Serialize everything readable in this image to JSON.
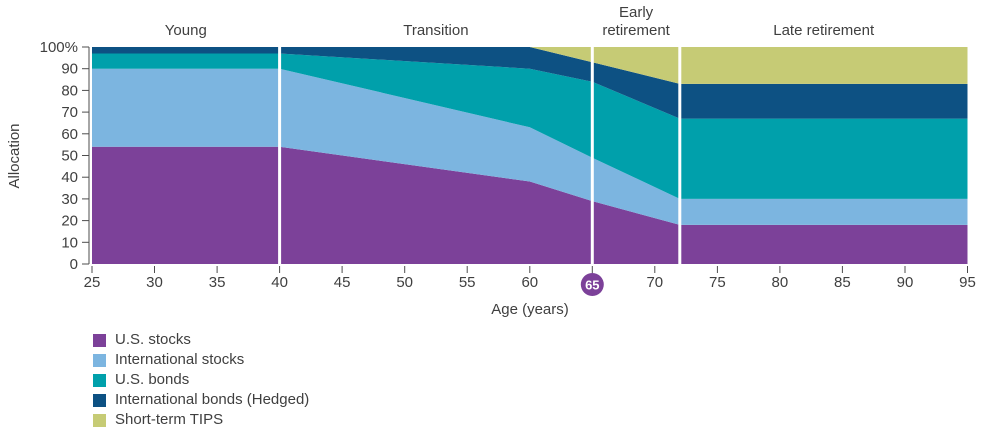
{
  "chart_data": {
    "type": "area",
    "stacked": true,
    "title": "",
    "xlabel": "Age (years)",
    "ylabel": "Allocation",
    "xlim": [
      25,
      95
    ],
    "ylim": [
      0,
      100
    ],
    "grid": false,
    "legend_position": "bottom-left",
    "x": [
      25,
      40,
      60,
      65,
      72,
      95
    ],
    "series": [
      {
        "name": "U.S. stocks",
        "color": "#7c4199",
        "values": [
          54,
          54,
          38,
          29,
          18,
          18
        ]
      },
      {
        "name": "International stocks",
        "color": "#7cb5e0",
        "values": [
          36,
          36,
          25,
          20,
          12,
          12
        ]
      },
      {
        "name": "U.S. bonds",
        "color": "#00a0ab",
        "values": [
          7,
          7,
          27,
          35,
          37,
          37
        ]
      },
      {
        "name": "International bonds (Hedged)",
        "color": "#0d5183",
        "values": [
          3,
          3,
          10,
          9,
          16,
          16
        ]
      },
      {
        "name": "Short-term TIPS",
        "color": "#c6cb75",
        "values": [
          0,
          0,
          0,
          7,
          17,
          17
        ]
      }
    ],
    "x_ticks": [
      25,
      30,
      35,
      40,
      45,
      50,
      55,
      60,
      65,
      70,
      75,
      80,
      85,
      90,
      95
    ],
    "y_ticks": [
      0,
      10,
      20,
      30,
      40,
      50,
      60,
      70,
      80,
      90,
      100
    ],
    "y_tick_labels": [
      "0",
      "10",
      "20",
      "30",
      "40",
      "50",
      "60",
      "70",
      "80",
      "90",
      "100%"
    ],
    "phases": [
      {
        "label": "Young",
        "lines": [
          "Young"
        ],
        "from": 25,
        "to": 40
      },
      {
        "label": "Transition",
        "lines": [
          "Transition"
        ],
        "from": 40,
        "to": 65
      },
      {
        "label": "Early retirement",
        "lines": [
          "Early",
          "retirement"
        ],
        "from": 65,
        "to": 72
      },
      {
        "label": "Late retirement",
        "lines": [
          "Late retirement"
        ],
        "from": 72,
        "to": 95
      }
    ],
    "dividers": [
      40,
      65,
      72
    ],
    "highlight_tick": {
      "value": 65,
      "label": "65",
      "circle_color": "#7c4199",
      "text_color": "#ffffff"
    },
    "axis_color": "#4d4d4d",
    "text_color": "#3f3f3f",
    "divider_color": "#ffffff"
  }
}
